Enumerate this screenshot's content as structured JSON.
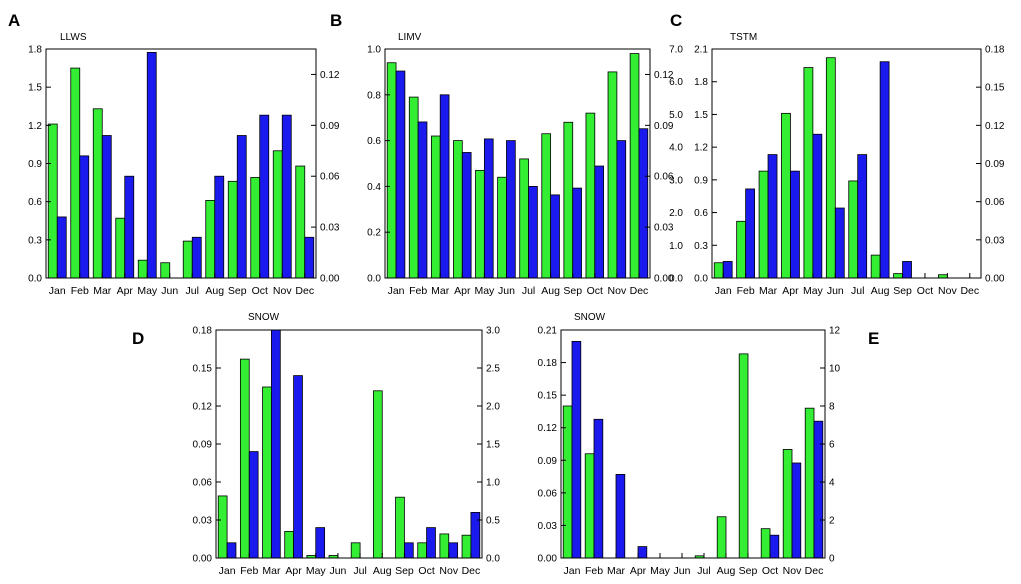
{
  "colors": {
    "green": "#33ee33",
    "blue": "#1a1aee",
    "axis": "#000000"
  },
  "chart_data": [
    {
      "panel": "A",
      "title": "LLWS",
      "type": "bar",
      "categories": [
        "Jan",
        "Feb",
        "Mar",
        "Apr",
        "May",
        "Jun",
        "Jul",
        "Aug",
        "Sep",
        "Oct",
        "Nov",
        "Dec"
      ],
      "left_ylim": [
        0,
        1.8
      ],
      "left_ticks": [
        "0.0",
        "0.3",
        "0.6",
        "0.9",
        "1.2",
        "1.5",
        "1.8"
      ],
      "right_ylim": [
        0,
        0.135
      ],
      "right_ticks": [
        "0.00",
        "0.03",
        "0.06",
        "0.09",
        "0.12"
      ],
      "series": [
        {
          "name": "green",
          "axis": "left",
          "values": [
            1.21,
            1.65,
            1.33,
            0.47,
            0.14,
            0.12,
            0.29,
            0.61,
            0.76,
            0.79,
            1.0,
            0.88
          ]
        },
        {
          "name": "blue",
          "axis": "right",
          "values": [
            0.036,
            0.072,
            0.084,
            0.06,
            0.133,
            0.0,
            0.024,
            0.06,
            0.084,
            0.096,
            0.096,
            0.024
          ]
        }
      ]
    },
    {
      "panel": "B",
      "title": "LIMV",
      "type": "bar",
      "categories": [
        "Jan",
        "Feb",
        "Mar",
        "Apr",
        "May",
        "Jun",
        "Jul",
        "Aug",
        "Sep",
        "Oct",
        "Nov",
        "Dec"
      ],
      "left_ylim": [
        0,
        1.0
      ],
      "left_ticks": [
        "0.0",
        "0.2",
        "0.4",
        "0.6",
        "0.8",
        "1.0"
      ],
      "right_ylim": [
        0,
        0.135
      ],
      "right_ticks": [
        "0.00",
        "0.03",
        "0.06",
        "0.09",
        "0.12"
      ],
      "series": [
        {
          "name": "green",
          "axis": "left",
          "values": [
            0.94,
            0.79,
            0.62,
            0.6,
            0.47,
            0.44,
            0.52,
            0.63,
            0.68,
            0.72,
            0.9,
            0.98
          ]
        },
        {
          "name": "blue",
          "axis": "right",
          "values": [
            0.122,
            0.092,
            0.108,
            0.074,
            0.082,
            0.081,
            0.054,
            0.049,
            0.053,
            0.066,
            0.081,
            0.088
          ]
        }
      ]
    },
    {
      "panel": "C",
      "title": "TSTM",
      "type": "bar",
      "categories": [
        "Jan",
        "Feb",
        "Mar",
        "Apr",
        "May",
        "Jun",
        "Jul",
        "Aug",
        "Sep",
        "Oct",
        "Nov",
        "Dec"
      ],
      "left_ylim": [
        0,
        2.1
      ],
      "left_ticks": [
        "0.0",
        "0.3",
        "0.6",
        "0.9",
        "1.2",
        "1.5",
        "1.8",
        "2.1"
      ],
      "left_outer_ylim": [
        0,
        7.0
      ],
      "left_outer_ticks": [
        "0.0",
        "1.0",
        "2.0",
        "3.0",
        "4.0",
        "5.0",
        "6.0",
        "7.0"
      ],
      "right_ylim": [
        0,
        0.18
      ],
      "right_ticks": [
        "0.00",
        "0.03",
        "0.06",
        "0.09",
        "0.12",
        "0.15",
        "0.18"
      ],
      "series": [
        {
          "name": "green",
          "axis": "left",
          "values": [
            0.14,
            0.52,
            0.98,
            1.51,
            1.93,
            2.02,
            0.89,
            0.21,
            0.04,
            0.0,
            0.03,
            0.0
          ]
        },
        {
          "name": "blue",
          "axis": "right",
          "values": [
            0.013,
            0.07,
            0.097,
            0.084,
            0.113,
            0.055,
            0.097,
            0.17,
            0.013,
            0.0,
            0.0,
            0.0
          ]
        }
      ]
    },
    {
      "panel": "D",
      "title": "SNOW",
      "type": "bar",
      "categories": [
        "Jan",
        "Feb",
        "Mar",
        "Apr",
        "May",
        "Jun",
        "Jul",
        "Aug",
        "Sep",
        "Oct",
        "Nov",
        "Dec"
      ],
      "left_ylim": [
        0,
        0.18
      ],
      "left_ticks": [
        "0.00",
        "0.03",
        "0.06",
        "0.09",
        "0.12",
        "0.15",
        "0.18"
      ],
      "right_ylim": [
        0,
        3.0
      ],
      "right_ticks": [
        "0.0",
        "0.5",
        "1.0",
        "1.5",
        "2.0",
        "2.5",
        "3.0"
      ],
      "series": [
        {
          "name": "green",
          "axis": "left",
          "values": [
            0.049,
            0.157,
            0.135,
            0.021,
            0.002,
            0.002,
            0.012,
            0.132,
            0.048,
            0.012,
            0.019,
            0.018
          ]
        },
        {
          "name": "blue",
          "axis": "right",
          "values": [
            0.2,
            1.4,
            3.0,
            2.4,
            0.4,
            0.0,
            0.0,
            0.0,
            0.2,
            0.4,
            0.2,
            0.6
          ]
        }
      ]
    },
    {
      "panel": "E",
      "title": "SNOW",
      "type": "bar",
      "categories": [
        "Jan",
        "Feb",
        "Mar",
        "Apr",
        "May",
        "Jun",
        "Jul",
        "Aug",
        "Sep",
        "Oct",
        "Nov",
        "Dec"
      ],
      "left_ylim": [
        0,
        0.21
      ],
      "left_ticks": [
        "0.00",
        "0.03",
        "0.06",
        "0.09",
        "0.12",
        "0.15",
        "0.18",
        "0.21"
      ],
      "right_ylim": [
        0,
        12
      ],
      "right_ticks": [
        "0",
        "2",
        "4",
        "6",
        "8",
        "10",
        "12"
      ],
      "series": [
        {
          "name": "green",
          "axis": "left",
          "values": [
            0.14,
            0.096,
            0.0,
            0.0,
            0.0,
            0.0,
            0.002,
            0.038,
            0.188,
            0.027,
            0.1,
            0.138
          ]
        },
        {
          "name": "blue",
          "axis": "right",
          "values": [
            11.4,
            7.3,
            4.4,
            0.6,
            0.0,
            0.0,
            0.0,
            0.0,
            0.0,
            1.2,
            5.0,
            7.2
          ]
        }
      ]
    }
  ]
}
